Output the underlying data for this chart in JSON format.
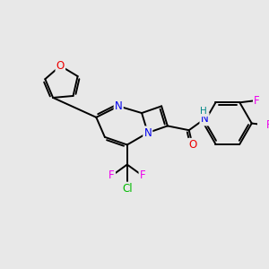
{
  "background_color": "#e8e8e8",
  "atom_colors": {
    "N": "#0000ee",
    "O": "#ee0000",
    "F": "#ee00ee",
    "Cl": "#00bb00",
    "H": "#008888",
    "C": "#000000"
  },
  "figsize": [
    3.0,
    3.0
  ],
  "dpi": 100,
  "lw": 1.4,
  "fs": 8.5
}
